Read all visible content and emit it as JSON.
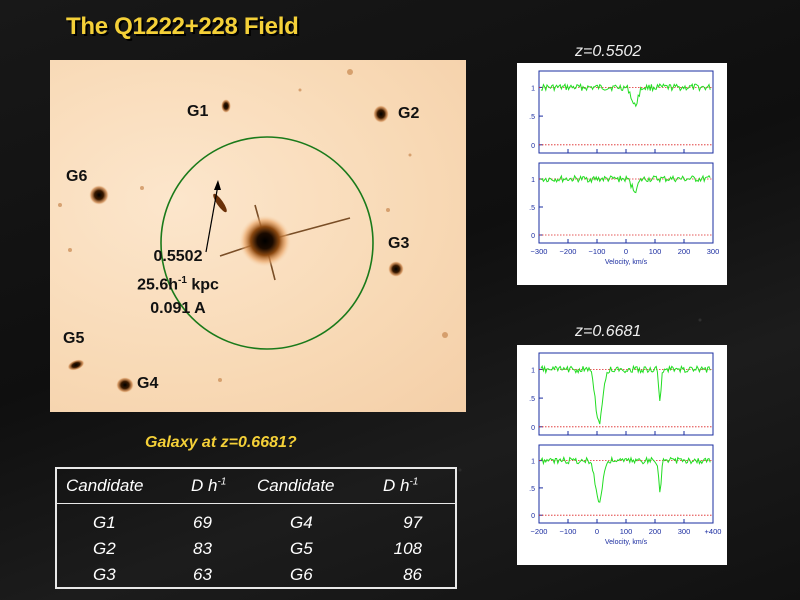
{
  "title": "The Q1222+228 Field",
  "field_image": {
    "galaxy_labels": [
      "G1",
      "G2",
      "G3",
      "G4",
      "G5",
      "G6"
    ],
    "annotation": {
      "redshift": "0.5502",
      "distance_prefix": "25.6h",
      "distance_exp": "-1",
      "distance_unit": " kpc",
      "equivalent_width": "0.091 A"
    }
  },
  "question": "Galaxy at z=0.6681?",
  "table": {
    "headers": {
      "candidate_1": "Candidate",
      "d_1": "D h",
      "d_exp": "-1",
      "candidate_2": "Candidate",
      "d_2": "D h"
    },
    "rows": [
      {
        "c1": "G1",
        "d1": "69",
        "c2": "G4",
        "d2": "97"
      },
      {
        "c1": "G2",
        "d1": "83",
        "c2": "G5",
        "d2": "108"
      },
      {
        "c1": "G3",
        "d1": "63",
        "c2": "G6",
        "d2": "86"
      }
    ]
  },
  "spectra": [
    {
      "z_label": "z=0.5502",
      "x_axis_label": "Velocity, km/s",
      "x_ticks": [
        "−300",
        "−200",
        "−100",
        "0",
        "100",
        "200",
        "300"
      ],
      "y_ticks": [
        "1",
        ".5",
        "0"
      ]
    },
    {
      "z_label": "z=0.6681",
      "x_axis_label": "Velocity, km/s",
      "x_ticks": [
        "−200",
        "−100",
        "0",
        "100",
        "200",
        "300",
        "+400"
      ],
      "y_ticks": [
        "1",
        ".5",
        "0"
      ]
    }
  ],
  "colors": {
    "title_yellow": "#f4d038",
    "spectrum_green": "#22dd22",
    "circle_green": "#1a7a1a",
    "axis_blue": "#1a2ca0",
    "continuum_red": "#dd2222"
  }
}
